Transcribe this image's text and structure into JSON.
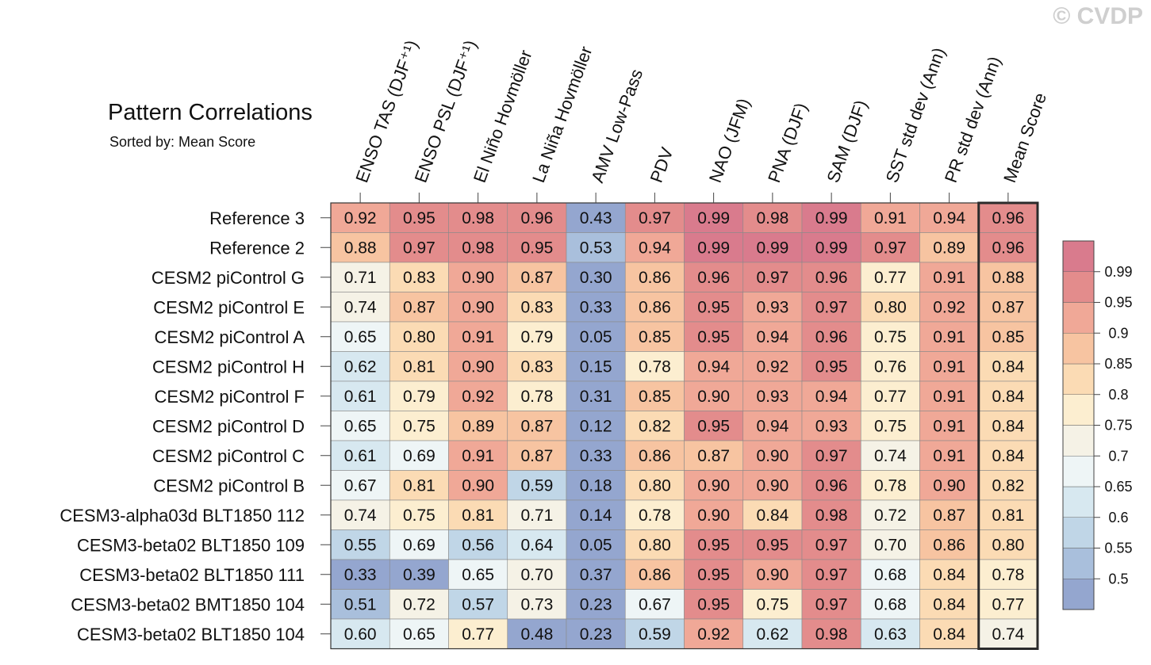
{
  "watermark": "© CVDP",
  "chart_data": {
    "type": "heatmap",
    "title": "Pattern Correlations",
    "subtitle": "Sorted by: Mean Score",
    "columns": [
      "ENSO TAS (DJF⁺¹)",
      "ENSO PSL (DJF⁺¹)",
      "El Niño Hovmöller",
      "La Niña Hovmöller",
      "AMV Low-Pass",
      "PDV",
      "NAO (JFM)",
      "PNA (DJF)",
      "SAM (DJF)",
      "SST std dev (Ann)",
      "PR std dev (Ann)",
      "Mean Score"
    ],
    "rows": [
      {
        "name": "Reference 3",
        "values": [
          "0.92",
          "0.95",
          "0.98",
          "0.96",
          "0.43",
          "0.97",
          "0.99",
          "0.98",
          "0.99",
          "0.91",
          "0.94",
          "0.96"
        ]
      },
      {
        "name": "Reference 2",
        "values": [
          "0.88",
          "0.97",
          "0.98",
          "0.95",
          "0.53",
          "0.94",
          "0.99",
          "0.99",
          "0.99",
          "0.97",
          "0.89",
          "0.96"
        ]
      },
      {
        "name": "CESM2 piControl G",
        "values": [
          "0.71",
          "0.83",
          "0.90",
          "0.87",
          "0.30",
          "0.86",
          "0.96",
          "0.97",
          "0.96",
          "0.77",
          "0.91",
          "0.88"
        ]
      },
      {
        "name": "CESM2 piControl E",
        "values": [
          "0.74",
          "0.87",
          "0.90",
          "0.83",
          "0.33",
          "0.86",
          "0.95",
          "0.93",
          "0.97",
          "0.80",
          "0.92",
          "0.87"
        ]
      },
      {
        "name": "CESM2 piControl A",
        "values": [
          "0.65",
          "0.80",
          "0.91",
          "0.79",
          "0.05",
          "0.85",
          "0.95",
          "0.94",
          "0.96",
          "0.75",
          "0.91",
          "0.85"
        ]
      },
      {
        "name": "CESM2 piControl H",
        "values": [
          "0.62",
          "0.81",
          "0.90",
          "0.83",
          "0.15",
          "0.78",
          "0.94",
          "0.92",
          "0.95",
          "0.76",
          "0.91",
          "0.84"
        ]
      },
      {
        "name": "CESM2 piControl F",
        "values": [
          "0.61",
          "0.79",
          "0.92",
          "0.78",
          "0.31",
          "0.85",
          "0.90",
          "0.93",
          "0.94",
          "0.77",
          "0.91",
          "0.84"
        ]
      },
      {
        "name": "CESM2 piControl D",
        "values": [
          "0.65",
          "0.75",
          "0.89",
          "0.87",
          "0.12",
          "0.82",
          "0.95",
          "0.94",
          "0.93",
          "0.75",
          "0.91",
          "0.84"
        ]
      },
      {
        "name": "CESM2 piControl C",
        "values": [
          "0.61",
          "0.69",
          "0.91",
          "0.87",
          "0.33",
          "0.86",
          "0.87",
          "0.90",
          "0.97",
          "0.74",
          "0.91",
          "0.84"
        ]
      },
      {
        "name": "CESM2 piControl B",
        "values": [
          "0.67",
          "0.81",
          "0.90",
          "0.59",
          "0.18",
          "0.80",
          "0.90",
          "0.90",
          "0.96",
          "0.78",
          "0.90",
          "0.82"
        ]
      },
      {
        "name": "CESM3-alpha03d BLT1850 112",
        "values": [
          "0.74",
          "0.75",
          "0.81",
          "0.71",
          "0.14",
          "0.78",
          "0.90",
          "0.84",
          "0.98",
          "0.72",
          "0.87",
          "0.81"
        ]
      },
      {
        "name": "CESM3-beta02 BLT1850 109",
        "values": [
          "0.55",
          "0.69",
          "0.56",
          "0.64",
          "0.05",
          "0.80",
          "0.95",
          "0.95",
          "0.97",
          "0.70",
          "0.86",
          "0.80"
        ]
      },
      {
        "name": "CESM3-beta02 BLT1850 111",
        "values": [
          "0.33",
          "0.39",
          "0.65",
          "0.70",
          "0.37",
          "0.86",
          "0.95",
          "0.90",
          "0.97",
          "0.68",
          "0.84",
          "0.78"
        ]
      },
      {
        "name": "CESM3-beta02 BMT1850 104",
        "values": [
          "0.51",
          "0.72",
          "0.57",
          "0.73",
          "0.23",
          "0.67",
          "0.95",
          "0.75",
          "0.97",
          "0.68",
          "0.84",
          "0.77"
        ]
      },
      {
        "name": "CESM3-beta02 BLT1850 104",
        "values": [
          "0.60",
          "0.65",
          "0.77",
          "0.48",
          "0.23",
          "0.59",
          "0.92",
          "0.62",
          "0.98",
          "0.63",
          "0.84",
          "0.74"
        ]
      }
    ],
    "colorbar": {
      "levels": [
        0.5,
        0.55,
        0.6,
        0.65,
        0.7,
        0.75,
        0.8,
        0.85,
        0.9,
        0.95,
        0.99
      ],
      "labels": [
        "0.5",
        "0.55",
        "0.6",
        "0.65",
        "0.7",
        "0.75",
        "0.8",
        "0.85",
        "0.9",
        "0.95",
        "0.99"
      ],
      "colors": [
        "#94a6cf",
        "#a9bfdc",
        "#c0d6e7",
        "#d7e8f0",
        "#eef5f6",
        "#f5f2e6",
        "#fceed0",
        "#fbdbb4",
        "#f7c4a1",
        "#f0a897",
        "#e38c8c",
        "#d97b8d"
      ]
    },
    "highlight_column": "Mean Score"
  }
}
